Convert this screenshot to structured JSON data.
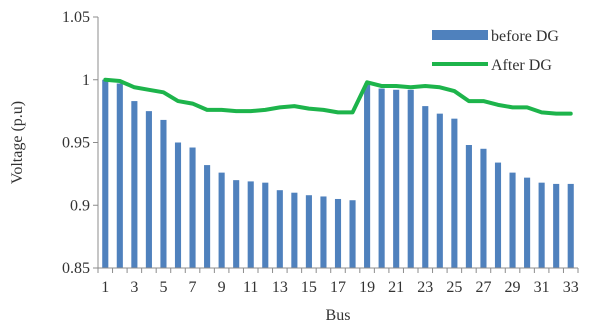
{
  "chart_data": {
    "type": "bar",
    "xlabel": "Bus",
    "ylabel": "Voltage (p.u)",
    "ylim": [
      0.85,
      1.05
    ],
    "y_ticks": [
      "0.85",
      "0.9",
      "0.95",
      "1",
      "1.05"
    ],
    "x_tick_labels": [
      "1",
      "3",
      "5",
      "7",
      "9",
      "11",
      "13",
      "15",
      "17",
      "19",
      "21",
      "23",
      "25",
      "27",
      "29",
      "31",
      "33"
    ],
    "grid": false,
    "legend_position": "top-right",
    "categories": [
      "1",
      "2",
      "3",
      "4",
      "5",
      "6",
      "7",
      "8",
      "9",
      "10",
      "11",
      "12",
      "13",
      "14",
      "15",
      "16",
      "17",
      "18",
      "19",
      "20",
      "21",
      "22",
      "23",
      "24",
      "25",
      "26",
      "27",
      "28",
      "29",
      "30",
      "31",
      "32",
      "33"
    ],
    "series": [
      {
        "name": "before DG",
        "kind": "bar",
        "color": "#4F81BD",
        "values": [
          1.0,
          0.997,
          0.983,
          0.975,
          0.968,
          0.95,
          0.946,
          0.932,
          0.926,
          0.92,
          0.919,
          0.918,
          0.912,
          0.91,
          0.908,
          0.907,
          0.905,
          0.904,
          0.997,
          0.993,
          0.992,
          0.992,
          0.979,
          0.973,
          0.969,
          0.948,
          0.945,
          0.934,
          0.926,
          0.922,
          0.918,
          0.917,
          0.917
        ]
      },
      {
        "name": "After DG",
        "kind": "line",
        "color": "#1DB44B",
        "values": [
          1.0,
          0.999,
          0.994,
          0.992,
          0.99,
          0.983,
          0.981,
          0.976,
          0.976,
          0.975,
          0.975,
          0.976,
          0.978,
          0.979,
          0.977,
          0.976,
          0.974,
          0.974,
          0.998,
          0.995,
          0.995,
          0.994,
          0.995,
          0.994,
          0.991,
          0.983,
          0.983,
          0.98,
          0.978,
          0.978,
          0.974,
          0.973,
          0.973
        ]
      }
    ]
  }
}
